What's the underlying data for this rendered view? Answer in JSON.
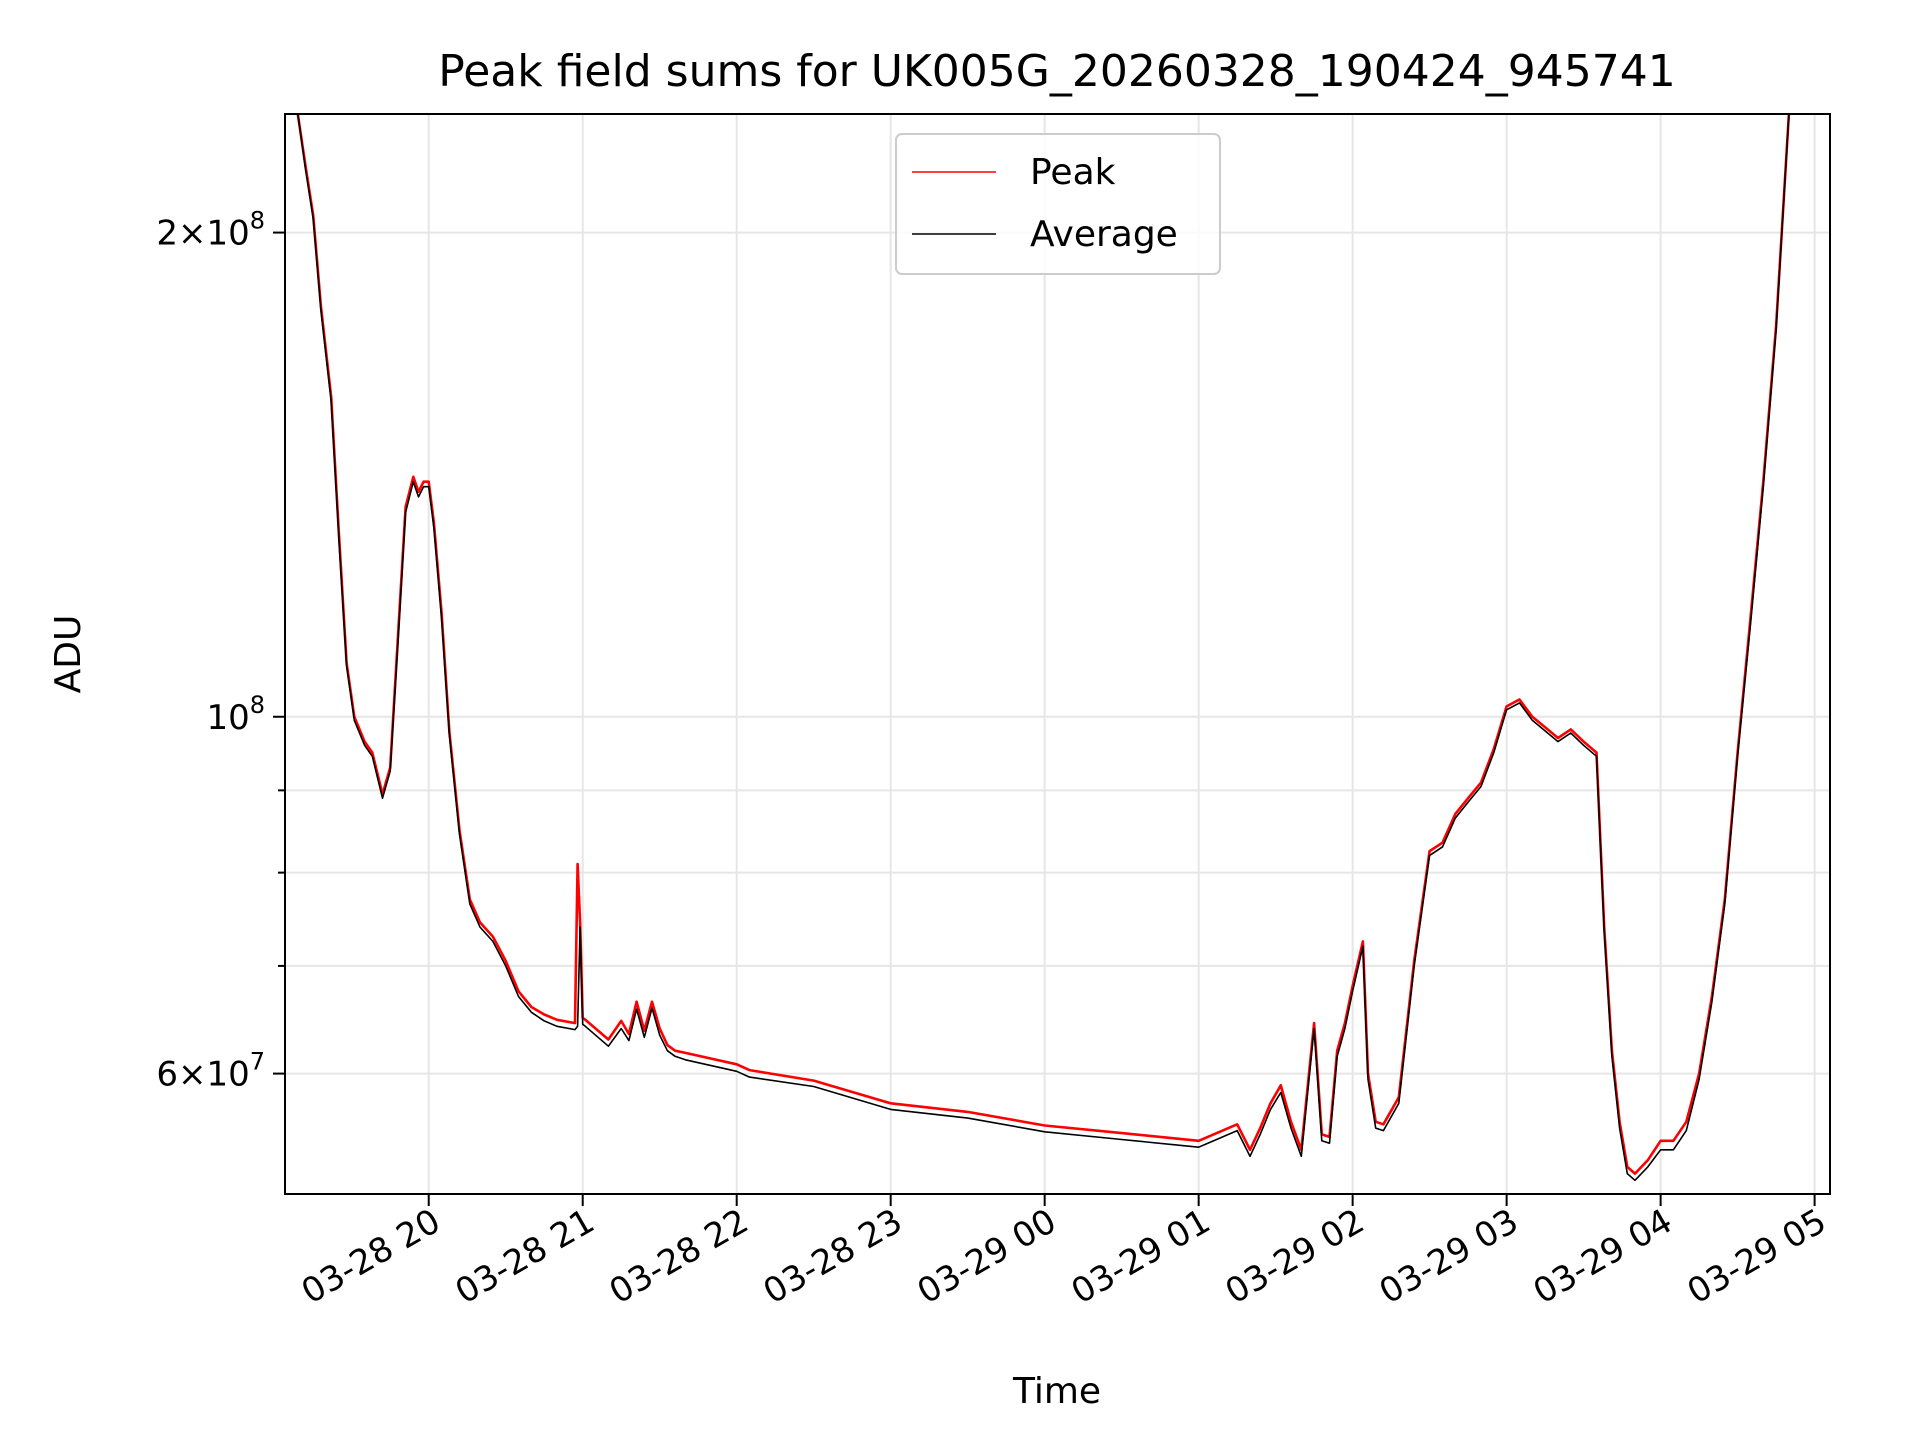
{
  "chart_data": {
    "type": "line",
    "title": "Peak field sums for UK005G_20260328_190424_945741",
    "xlabel": "Time",
    "ylabel": "ADU",
    "y_scale": "log",
    "grid": true,
    "legend_position": "upper center",
    "xlim": [
      "2026-03-28 19:04",
      "2026-03-29 05:06"
    ],
    "ylim": [
      50500000,
      237000000
    ],
    "x_ticks": [
      {
        "value": "2026-03-28 20:00",
        "label": "03-28 20"
      },
      {
        "value": "2026-03-28 21:00",
        "label": "03-28 21"
      },
      {
        "value": "2026-03-28 22:00",
        "label": "03-28 22"
      },
      {
        "value": "2026-03-28 23:00",
        "label": "03-28 23"
      },
      {
        "value": "2026-03-29 00:00",
        "label": "03-29 00"
      },
      {
        "value": "2026-03-29 01:00",
        "label": "03-29 01"
      },
      {
        "value": "2026-03-29 02:00",
        "label": "03-29 02"
      },
      {
        "value": "2026-03-29 03:00",
        "label": "03-29 03"
      },
      {
        "value": "2026-03-29 04:00",
        "label": "03-29 04"
      },
      {
        "value": "2026-03-29 05:00",
        "label": "03-29 05"
      }
    ],
    "y_ticks": [
      {
        "value": 60000000,
        "mantissa": "6",
        "exponent": "7"
      },
      {
        "value": 100000000,
        "mantissa": "",
        "exponent": "8"
      },
      {
        "value": 200000000,
        "mantissa": "2",
        "exponent": "8"
      }
    ],
    "y_minor_ticks": [
      70000000,
      80000000,
      90000000
    ],
    "x": [
      "2026-03-28 19:09",
      "2026-03-28 19:12",
      "2026-03-28 19:15",
      "2026-03-28 19:18",
      "2026-03-28 19:22",
      "2026-03-28 19:25",
      "2026-03-28 19:28",
      "2026-03-28 19:31",
      "2026-03-28 19:35",
      "2026-03-28 19:38",
      "2026-03-28 19:42",
      "2026-03-28 19:45",
      "2026-03-28 19:48",
      "2026-03-28 19:51",
      "2026-03-28 19:54",
      "2026-03-28 19:56",
      "2026-03-28 19:58",
      "2026-03-28 20:00",
      "2026-03-28 20:02",
      "2026-03-28 20:05",
      "2026-03-28 20:08",
      "2026-03-28 20:12",
      "2026-03-28 20:16",
      "2026-03-28 20:20",
      "2026-03-28 20:25",
      "2026-03-28 20:30",
      "2026-03-28 20:35",
      "2026-03-28 20:40",
      "2026-03-28 20:45",
      "2026-03-28 20:50",
      "2026-03-28 20:57",
      "2026-03-28 20:58",
      "2026-03-28 20:59",
      "2026-03-28 21:00",
      "2026-03-28 21:01",
      "2026-03-28 21:10",
      "2026-03-28 21:15",
      "2026-03-28 21:18",
      "2026-03-28 21:21",
      "2026-03-28 21:24",
      "2026-03-28 21:27",
      "2026-03-28 21:30",
      "2026-03-28 21:33",
      "2026-03-28 21:36",
      "2026-03-28 21:40",
      "2026-03-28 22:00",
      "2026-03-28 22:05",
      "2026-03-28 22:30",
      "2026-03-28 23:00",
      "2026-03-28 23:30",
      "2026-03-29 00:00",
      "2026-03-29 00:30",
      "2026-03-29 01:00",
      "2026-03-29 01:15",
      "2026-03-29 01:20",
      "2026-03-29 01:24",
      "2026-03-29 01:28",
      "2026-03-29 01:32",
      "2026-03-29 01:36",
      "2026-03-29 01:40",
      "2026-03-29 01:45",
      "2026-03-29 01:48",
      "2026-03-29 01:51",
      "2026-03-29 01:54",
      "2026-03-29 01:57",
      "2026-03-29 02:00",
      "2026-03-29 02:04",
      "2026-03-29 02:06",
      "2026-03-29 02:09",
      "2026-03-29 02:12",
      "2026-03-29 02:18",
      "2026-03-29 02:24",
      "2026-03-29 02:30",
      "2026-03-29 02:35",
      "2026-03-29 02:40",
      "2026-03-29 02:45",
      "2026-03-29 02:50",
      "2026-03-29 02:55",
      "2026-03-29 03:00",
      "2026-03-29 03:05",
      "2026-03-29 03:10",
      "2026-03-29 03:15",
      "2026-03-29 03:20",
      "2026-03-29 03:25",
      "2026-03-29 03:30",
      "2026-03-29 03:35",
      "2026-03-29 03:38",
      "2026-03-29 03:41",
      "2026-03-29 03:44",
      "2026-03-29 03:47",
      "2026-03-29 03:50",
      "2026-03-29 03:55",
      "2026-03-29 04:00",
      "2026-03-29 04:05",
      "2026-03-29 04:10",
      "2026-03-29 04:15",
      "2026-03-29 04:20",
      "2026-03-29 04:25",
      "2026-03-29 04:30",
      "2026-03-29 04:35",
      "2026-03-29 04:40",
      "2026-03-29 04:45",
      "2026-03-29 04:50"
    ],
    "series": [
      {
        "name": "Peak",
        "color": "#ff0000",
        "values": [
          237000000,
          220000000,
          205000000,
          180000000,
          158000000,
          130000000,
          108000000,
          100000000,
          96500000,
          95000000,
          89500000,
          93000000,
          112000000,
          135000000,
          141000000,
          138000000,
          140000000,
          140000000,
          132000000,
          116000000,
          98000000,
          85000000,
          77000000,
          74500000,
          73000000,
          70500000,
          67500000,
          66000000,
          65300000,
          64800000,
          64500000,
          81000000,
          74500000,
          65000000,
          64800000,
          63000000,
          64700000,
          63500000,
          66500000,
          63800000,
          66500000,
          64000000,
          62500000,
          62000000,
          61800000,
          60800000,
          60300000,
          59400000,
          57500000,
          56800000,
          55700000,
          55100000,
          54500000,
          55800000,
          53800000,
          55500000,
          57500000,
          59000000,
          56000000,
          53800000,
          64500000,
          55000000,
          54800000,
          62000000,
          64500000,
          68000000,
          72500000,
          60000000,
          56000000,
          55800000,
          58000000,
          70500000,
          82500000,
          83500000,
          87000000,
          89000000,
          91000000,
          95500000,
          101500000,
          102500000,
          100000000,
          98500000,
          97000000,
          98200000,
          96500000,
          95000000,
          74000000,
          62000000,
          56000000,
          52500000,
          52000000,
          53000000,
          54500000,
          54500000,
          56000000,
          60000000,
          67000000,
          77000000,
          95000000,
          115000000,
          140000000,
          175000000,
          237000000
        ]
      },
      {
        "name": "Average",
        "color": "#000000",
        "values": [
          237000000,
          219000000,
          204000000,
          179000000,
          157000000,
          129000000,
          107500000,
          99500000,
          96000000,
          94500000,
          89000000,
          92500000,
          111000000,
          134000000,
          140000000,
          137000000,
          139000000,
          139000000,
          131000000,
          115000000,
          97500000,
          84500000,
          76500000,
          74000000,
          72500000,
          70000000,
          67000000,
          65500000,
          64700000,
          64200000,
          63900000,
          64200000,
          74000000,
          64400000,
          64200000,
          62400000,
          64000000,
          62900000,
          65800000,
          63200000,
          65900000,
          63400000,
          62000000,
          61500000,
          61200000,
          60200000,
          59700000,
          58900000,
          57000000,
          56300000,
          55200000,
          54600000,
          54000000,
          55300000,
          53300000,
          55000000,
          57000000,
          58400000,
          55500000,
          53300000,
          64000000,
          54500000,
          54300000,
          61500000,
          64000000,
          67500000,
          72000000,
          59500000,
          55500000,
          55300000,
          57500000,
          70000000,
          82000000,
          83000000,
          86500000,
          88500000,
          90500000,
          95000000,
          101000000,
          102000000,
          99500000,
          98000000,
          96500000,
          97700000,
          96000000,
          94500000,
          73500000,
          61500000,
          55500000,
          52000000,
          51500000,
          52500000,
          53800000,
          53800000,
          55300000,
          59500000,
          66500000,
          76500000,
          94500000,
          114000000,
          139000000,
          174000000,
          237000000
        ]
      }
    ]
  }
}
